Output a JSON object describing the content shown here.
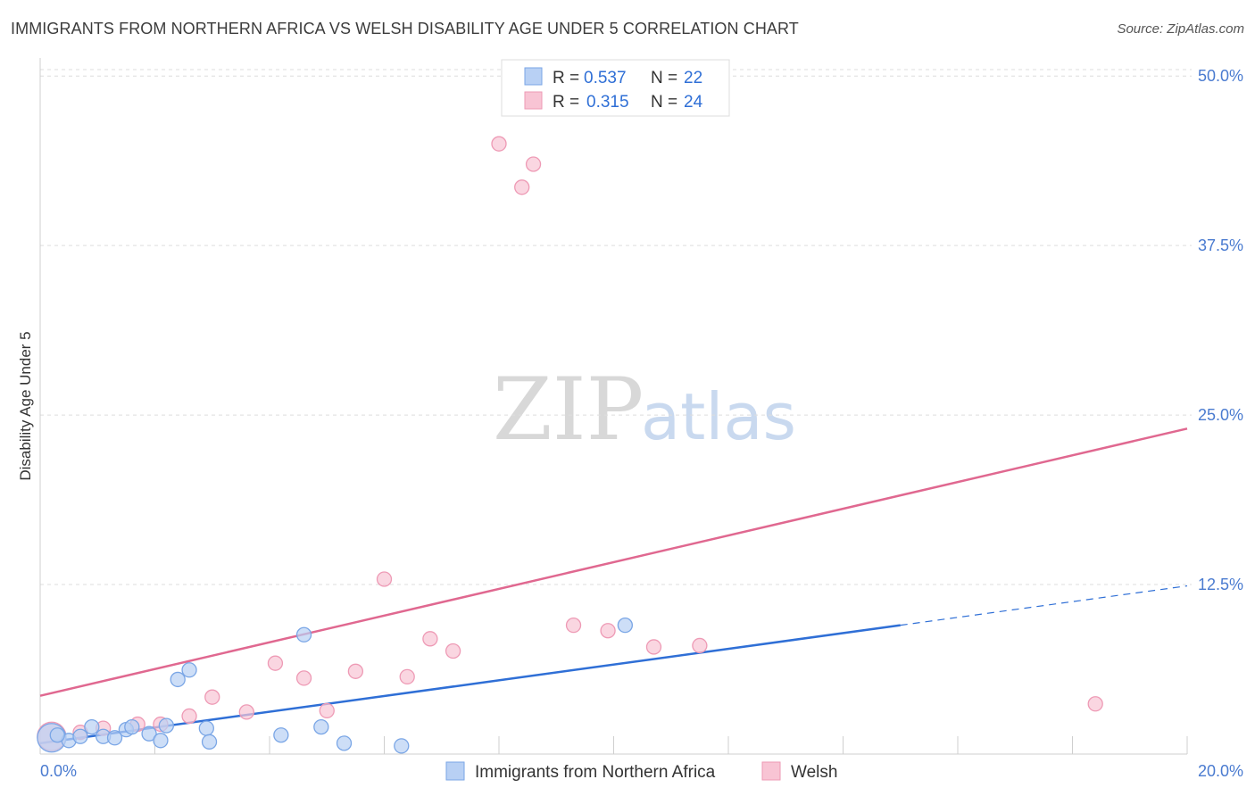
{
  "title": "IMMIGRANTS FROM NORTHERN AFRICA VS WELSH DISABILITY AGE UNDER 5 CORRELATION CHART",
  "source": "Source: ZipAtlas.com",
  "watermark": {
    "zip": "ZIP",
    "atlas": "atlas"
  },
  "colors": {
    "blue_fill": "#b8d0f4",
    "blue_stroke": "#7aa6e6",
    "blue_line": "#2f6fd6",
    "pink_fill": "#f8c4d4",
    "pink_stroke": "#ee9ab5",
    "pink_line": "#e06890",
    "tick_label": "#4a7bd0",
    "grid": "#dddddd"
  },
  "legend": {
    "rows": [
      {
        "r_label": "R =",
        "r_value": "0.537",
        "n_label": "N =",
        "n_value": "22"
      },
      {
        "r_label": "R =",
        "r_value": "0.315",
        "n_label": "N =",
        "n_value": "24"
      }
    ]
  },
  "chart_data": {
    "type": "scatter",
    "title": "IMMIGRANTS FROM NORTHERN AFRICA VS WELSH DISABILITY AGE UNDER 5 CORRELATION CHART",
    "xlabel": "",
    "ylabel": "Disability Age Under 5",
    "xlim": [
      0,
      20
    ],
    "ylim": [
      0,
      51
    ],
    "x_tick_labels": [
      "0.0%",
      "20.0%"
    ],
    "y_ticks": [
      12.5,
      25.0,
      37.5,
      50.0
    ],
    "y_tick_labels": [
      "12.5%",
      "25.0%",
      "37.5%",
      "50.0%"
    ],
    "grid": true,
    "legend_position": "top-center",
    "series": [
      {
        "name": "Immigrants from Northern Africa",
        "color": "#b8d0f4",
        "points": [
          {
            "x": 0.2,
            "y": 1.2,
            "big": true
          },
          {
            "x": 0.5,
            "y": 1.0
          },
          {
            "x": 0.7,
            "y": 1.3
          },
          {
            "x": 0.9,
            "y": 2.0
          },
          {
            "x": 1.1,
            "y": 1.3
          },
          {
            "x": 1.3,
            "y": 1.2
          },
          {
            "x": 1.5,
            "y": 1.8
          },
          {
            "x": 1.6,
            "y": 2.0
          },
          {
            "x": 1.9,
            "y": 1.5
          },
          {
            "x": 2.1,
            "y": 1.0
          },
          {
            "x": 2.2,
            "y": 2.1
          },
          {
            "x": 2.4,
            "y": 5.5
          },
          {
            "x": 2.6,
            "y": 6.2
          },
          {
            "x": 2.9,
            "y": 1.9
          },
          {
            "x": 2.95,
            "y": 0.9
          },
          {
            "x": 4.2,
            "y": 1.4
          },
          {
            "x": 4.6,
            "y": 8.8
          },
          {
            "x": 4.9,
            "y": 2.0
          },
          {
            "x": 5.3,
            "y": 0.8
          },
          {
            "x": 6.3,
            "y": 0.6
          },
          {
            "x": 10.2,
            "y": 9.5
          },
          {
            "x": 0.3,
            "y": 1.4
          }
        ],
        "trend": {
          "x0": 0,
          "y0": 0.8,
          "x1": 15,
          "y1": 9.5,
          "dashed_to_x": 20,
          "dashed_to_y": 12.4
        }
      },
      {
        "name": "Welsh",
        "color": "#f8c4d4",
        "points": [
          {
            "x": 0.2,
            "y": 1.3,
            "big": true
          },
          {
            "x": 0.7,
            "y": 1.6
          },
          {
            "x": 1.1,
            "y": 1.9
          },
          {
            "x": 1.7,
            "y": 2.2
          },
          {
            "x": 2.1,
            "y": 2.2
          },
          {
            "x": 2.6,
            "y": 2.8
          },
          {
            "x": 3.0,
            "y": 4.2
          },
          {
            "x": 3.6,
            "y": 3.1
          },
          {
            "x": 4.1,
            "y": 6.7
          },
          {
            "x": 4.6,
            "y": 5.6
          },
          {
            "x": 5.0,
            "y": 3.2
          },
          {
            "x": 5.5,
            "y": 6.1
          },
          {
            "x": 6.0,
            "y": 12.9
          },
          {
            "x": 6.4,
            "y": 5.7
          },
          {
            "x": 6.8,
            "y": 8.5
          },
          {
            "x": 7.2,
            "y": 7.6
          },
          {
            "x": 8.0,
            "y": 45.0
          },
          {
            "x": 8.4,
            "y": 41.8
          },
          {
            "x": 8.6,
            "y": 43.5
          },
          {
            "x": 9.3,
            "y": 9.5
          },
          {
            "x": 9.9,
            "y": 9.1
          },
          {
            "x": 10.7,
            "y": 7.9
          },
          {
            "x": 11.5,
            "y": 8.0
          },
          {
            "x": 18.4,
            "y": 3.7
          }
        ],
        "trend": {
          "x0": 0,
          "y0": 4.3,
          "x1": 20,
          "y1": 24.0
        }
      }
    ]
  }
}
